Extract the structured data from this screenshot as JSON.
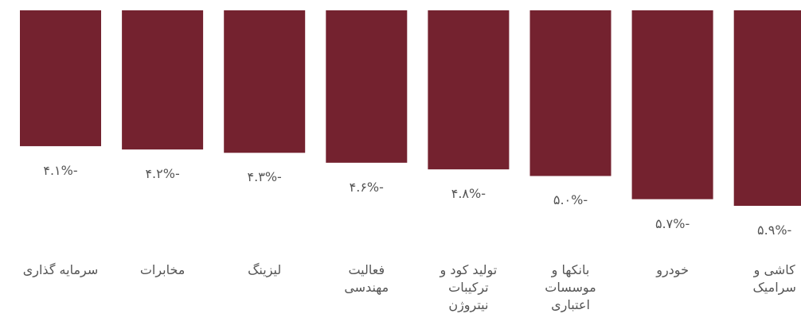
{
  "chart_data": {
    "type": "bar",
    "categories": [
      "سرمایه گذاری",
      "مخابرات",
      "لیزینگ",
      "فعالیت مهندسی",
      "تولید کود و ترکیبات نیتروژن",
      "بانکها و موسسات اعتباری",
      "خودرو",
      "کاشی و سرامیک"
    ],
    "values": [
      -4.1,
      -4.2,
      -4.3,
      -4.6,
      -4.8,
      -5.0,
      -5.7,
      -5.9
    ],
    "value_labels": [
      "-۴.۱%",
      "-۴.۲%",
      "-۴.۳%",
      "-۴.۶%",
      "-۴.۸%",
      "-۵.۰%",
      "-۵.۷%",
      "-۵.۹%"
    ],
    "color": "#74222f",
    "ylim": [
      -5.9,
      0
    ]
  }
}
